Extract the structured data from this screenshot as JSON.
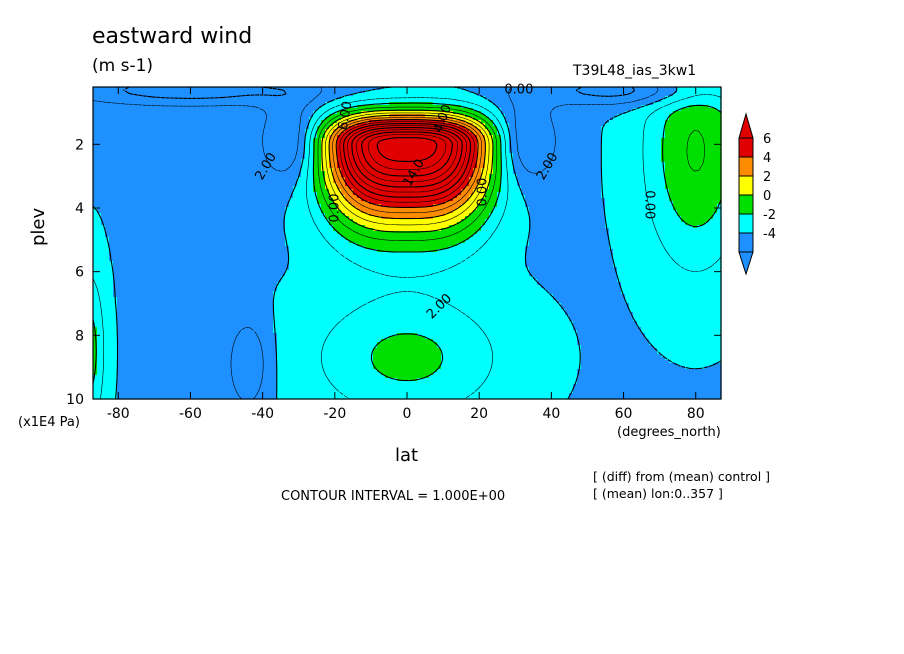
{
  "figure": {
    "title": "eastward wind",
    "units": "(m s-1)",
    "experiment": "T39L48_ias_3kw1",
    "notes": [
      "[ (diff) from (mean) control ]",
      "[ (mean) lon:0..357 ]"
    ],
    "contour_interval": "CONTOUR INTERVAL = 1.000E+00"
  },
  "chart_data": {
    "type": "heatmap",
    "title": "eastward wind",
    "xlabel": "lat",
    "ylabel": "plev",
    "x_units": "(degrees_north)",
    "y_units": "(x1E4 Pa)",
    "xlim": [
      -87,
      87
    ],
    "ylim": [
      10,
      0.2
    ],
    "x_ticks": [
      -80,
      -60,
      -40,
      -20,
      0,
      20,
      40,
      60,
      80
    ],
    "x_tick_labels": [
      "-80",
      "-60",
      "-40",
      "-20",
      "0",
      "20",
      "40",
      "60",
      "80"
    ],
    "y_ticks": [
      2,
      4,
      6,
      8,
      10
    ],
    "y_tick_labels": [
      "2",
      "4",
      "6",
      "8",
      "10"
    ],
    "colorbar": {
      "levels": [
        "6",
        "4",
        "2",
        "0",
        "-2",
        "-4"
      ],
      "colors": [
        "#e00000",
        "#ff8c00",
        "#ffff00",
        "#00e000",
        "#00ffff",
        "#1e90ff"
      ],
      "extends": "both"
    },
    "contour_labels": [
      {
        "text": "0.00",
        "lat": 31,
        "plev": 0.3
      },
      {
        "text": "2.00",
        "lat": -39,
        "plev": 2.7,
        "angle": -60
      },
      {
        "text": "2.00",
        "lat": 39,
        "plev": 2.7,
        "angle": -60
      },
      {
        "text": "0.00",
        "lat": -20,
        "plev": 4.0,
        "angle": -90
      },
      {
        "text": "0.00",
        "lat": 21,
        "plev": 3.5,
        "angle": -90
      },
      {
        "text": "0.00",
        "lat": 67,
        "plev": 3.9,
        "angle": 90
      },
      {
        "text": "14.0",
        "lat": 2,
        "plev": 2.9,
        "angle": -60
      },
      {
        "text": "4.00",
        "lat": 10,
        "plev": 1.2,
        "angle": -70
      },
      {
        "text": "6.00",
        "lat": -17,
        "plev": 1.1,
        "angle": -80
      },
      {
        "text": "2.00",
        "lat": 9,
        "plev": 7.1,
        "angle": -45
      }
    ],
    "description_fields": {
      "jet_core_max_lat": 0,
      "jet_core_max_plev": 2,
      "negative_minima": [
        {
          "lat": -32,
          "plev": 1.9
        },
        {
          "lat": 33,
          "plev": 1.9
        },
        {
          "lat": -44,
          "plev": 9.0
        }
      ]
    }
  }
}
